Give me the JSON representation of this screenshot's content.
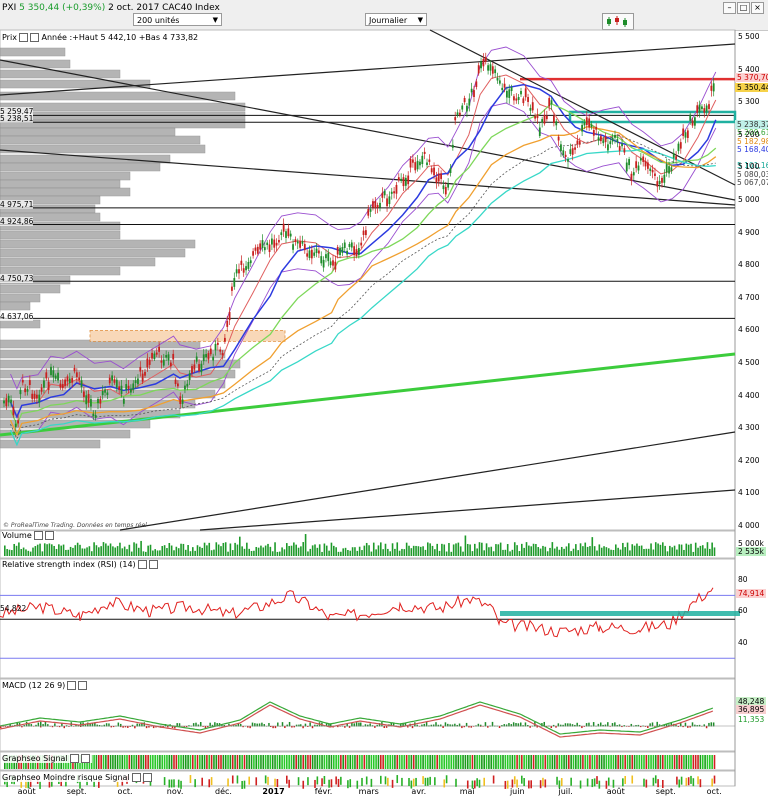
{
  "header": {
    "title_prefix": "PXI",
    "price_change": "5 350,44 (+0,39%)",
    "date_instrument": "2 oct. 2017 CAC40 Index",
    "units_select": "200 unités",
    "period_select": "Journalier"
  },
  "colors": {
    "price": "#3a3a3a",
    "up_candle": "#1e8c2a",
    "down_candle": "#c8201e",
    "ma_blue": "#2c3be0",
    "ma_red": "#e06060",
    "ma_green": "#7ed85a",
    "ma_orange": "#f0a030",
    "ma_cyan": "#38d8c8",
    "bollinger": "#9a4fd0",
    "volume": "#1e9a2a",
    "rsi": "#e0201e",
    "teal_zone": "#20b0a0",
    "red_level": "#e03030"
  },
  "price_panel": {
    "label": "Prix",
    "year_info": "Année :+Haut 5 442,10 +Bas 4 733,82",
    "copyright": "© ProRealTime Trading. Données en temps réel"
  },
  "level_labels": [
    "5 259,47",
    "5 238,51",
    "4 975,71",
    "4 924,86",
    "4 750,73",
    "4 637,06"
  ],
  "right_tags": {
    "red": "5 370,70",
    "last": "5 350,44",
    "teal": "5 238,37",
    "green": "5 209,61",
    "orange": "5 182,98",
    "blue": "5 168,40",
    "cyan": "5 101,16",
    "b1": "5 080,03",
    "b2": "5 067,07"
  },
  "volume_panel": {
    "label": "Volume",
    "v1": "5 000k",
    "v2": "2 535k"
  },
  "rsi_panel": {
    "label": "Relative strength index (RSI) (14)",
    "left_value": "54,822",
    "value": "74,914"
  },
  "macd_panel": {
    "label": "MACD (12 26 9)",
    "v1": "48,248",
    "v2": "36,895",
    "v3": "11,353"
  },
  "signal_panel": {
    "label": "Graphseo Signal"
  },
  "risk_panel": {
    "label": "Graphseo Moindre risque Signal"
  },
  "axes": {
    "price_ticks": [
      "5 500",
      "5 400",
      "5 300",
      "5 200",
      "5 100",
      "5 000",
      "4 900",
      "4 800",
      "4 700",
      "4 600",
      "4 500",
      "4 400",
      "4 300",
      "4 200",
      "4 100",
      "4 000"
    ],
    "rsi_ticks": [
      "80",
      "60",
      "40"
    ],
    "months": [
      "août",
      "sept.",
      "oct.",
      "nov.",
      "déc.",
      "2017",
      "févr.",
      "mars",
      "avr.",
      "mai",
      "juin",
      "juil.",
      "août",
      "sept.",
      "oct."
    ]
  },
  "chart_data": {
    "type": "candlestick",
    "title": "CAC40 Index",
    "ylim": [
      3980,
      5520
    ],
    "yticks": [
      4000,
      4100,
      4200,
      4300,
      4400,
      4500,
      4600,
      4700,
      4800,
      4900,
      5000,
      5100,
      5200,
      5300,
      5400,
      5500
    ],
    "close_path": [
      [
        "2016-07-22",
        4380
      ],
      [
        "2016-07-26",
        4290
      ],
      [
        "2016-07-29",
        4440
      ],
      [
        "2016-08-08",
        4405
      ],
      [
        "2016-08-16",
        4460
      ],
      [
        "2016-08-24",
        4420
      ],
      [
        "2016-09-01",
        4470
      ],
      [
        "2016-09-12",
        4350
      ],
      [
        "2016-09-22",
        4440
      ],
      [
        "2016-09-30",
        4400
      ],
      [
        "2016-10-10",
        4460
      ],
      [
        "2016-10-20",
        4530
      ],
      [
        "2016-10-31",
        4500
      ],
      [
        "2016-11-04",
        4380
      ],
      [
        "2016-11-14",
        4490
      ],
      [
        "2016-11-23",
        4530
      ],
      [
        "2016-12-01",
        4550
      ],
      [
        "2016-12-08",
        4760
      ],
      [
        "2016-12-19",
        4830
      ],
      [
        "2016-12-30",
        4860
      ],
      [
        "2017-01-06",
        4905
      ],
      [
        "2017-01-16",
        4860
      ],
      [
        "2017-01-27",
        4840
      ],
      [
        "2017-02-06",
        4800
      ],
      [
        "2017-02-10",
        4830
      ],
      [
        "2017-02-17",
        4850
      ],
      [
        "2017-02-24",
        4860
      ],
      [
        "2017-03-03",
        4990
      ],
      [
        "2017-03-13",
        5010
      ],
      [
        "2017-03-22",
        5060
      ],
      [
        "2017-03-31",
        5120
      ],
      [
        "2017-04-07",
        5130
      ],
      [
        "2017-04-13",
        5070
      ],
      [
        "2017-04-19",
        5030
      ],
      [
        "2017-04-24",
        5270
      ],
      [
        "2017-05-02",
        5300
      ],
      [
        "2017-05-09",
        5400
      ],
      [
        "2017-05-16",
        5420
      ],
      [
        "2017-05-25",
        5330
      ],
      [
        "2017-06-05",
        5320
      ],
      [
        "2017-06-15",
        5230
      ],
      [
        "2017-06-22",
        5290
      ],
      [
        "2017-06-30",
        5130
      ],
      [
        "2017-07-07",
        5150
      ],
      [
        "2017-07-14",
        5240
      ],
      [
        "2017-07-24",
        5180
      ],
      [
        "2017-08-03",
        5180
      ],
      [
        "2017-08-11",
        5080
      ],
      [
        "2017-08-18",
        5110
      ],
      [
        "2017-08-29",
        5050
      ],
      [
        "2017-09-05",
        5110
      ],
      [
        "2017-09-12",
        5200
      ],
      [
        "2017-09-21",
        5270
      ],
      [
        "2017-09-27",
        5300
      ],
      [
        "2017-10-02",
        5350
      ]
    ],
    "last_close": 5350.44,
    "support_levels": [
      5259.47,
      5238.51,
      4975.71,
      4924.86,
      4750.73,
      4637.06
    ],
    "resistance_red": 5370.7,
    "rsi_last": 74.914,
    "macd": {
      "macd": 48.248,
      "signal": 36.895,
      "histogram": 11.353
    }
  }
}
